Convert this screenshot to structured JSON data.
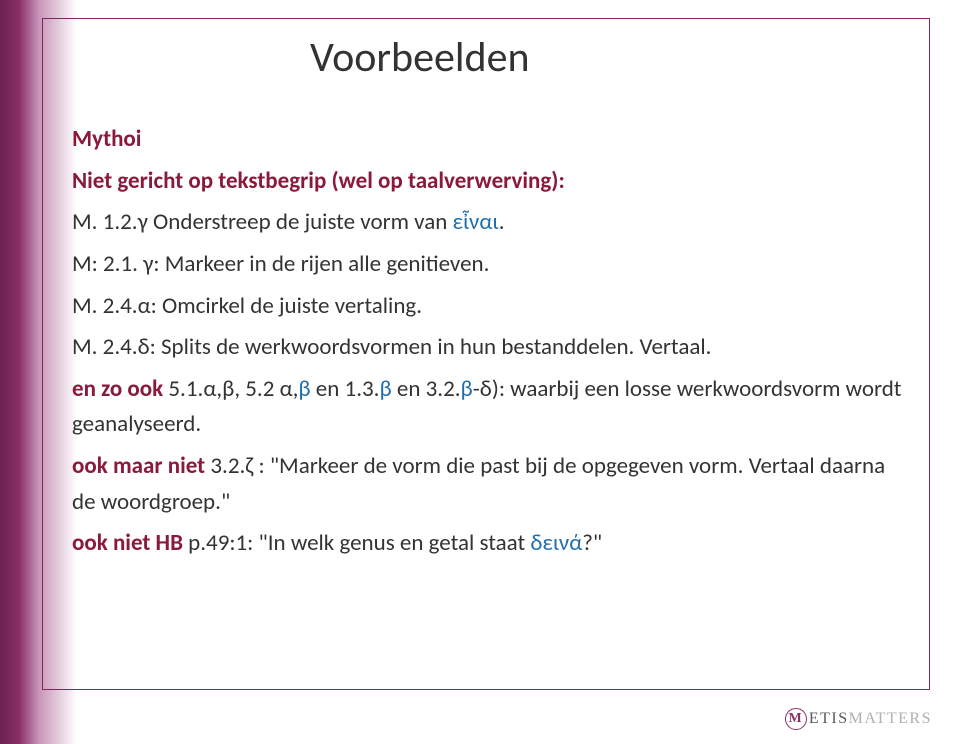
{
  "colors": {
    "gradient_dark": "#6b2150",
    "gradient_mid": "#8a2e68",
    "gradient_light": "#c893b8",
    "background": "#ffffff",
    "frame_border": "#7b2a5f",
    "text": "#333333",
    "emphasis_red": "#8b1a3a",
    "emphasis_blue": "#1f6fb0",
    "footer_text": "#58595b"
  },
  "typography": {
    "title_fontsize": 42,
    "body_fontsize": 23,
    "footer_fontsize": 16
  },
  "title": "Voorbeelden",
  "lines": {
    "l1": "Mythoi",
    "l2": "Niet gericht op tekstbegrip (wel op taalverwerving):",
    "l3a": "M. 1.2.γ Onderstreep de juiste vorm van ",
    "l3b": "εἶναι",
    "l3c": ".",
    "l4": "M: 2.1. γ: Markeer in de rijen alle genitieven.",
    "l5": "M. 2.4.α: Omcirkel de juiste vertaling.",
    "l6": "M. 2.4.δ: Splits de werkwoordsvormen in hun bestanddelen. Vertaal.",
    "l7a": "en zo ook",
    "l7b": " 5.1.α,β, 5.2 α,",
    "l7c": "β",
    "l7d": " en 1.3.",
    "l7e": "β",
    "l7f": " en 3.2.",
    "l7g": "β",
    "l7h": "-δ): waarbij een losse werkwoordsvorm wordt geanalyseerd.",
    "l8a": "ook maar niet",
    "l8b": " 3.2.ζ : \"Markeer de vorm die past bij de opgegeven vorm. Vertaal daarna de woordgroep.\"",
    "l9a": "ook niet HB",
    "l9b": " p.49:1: \"In welk genus en getal staat ",
    "l9c": "δεινά",
    "l9d": "?\""
  },
  "footer": {
    "logo_letter": "M",
    "brand_part1": "ETIS",
    "brand_part2": "MATTERS"
  }
}
